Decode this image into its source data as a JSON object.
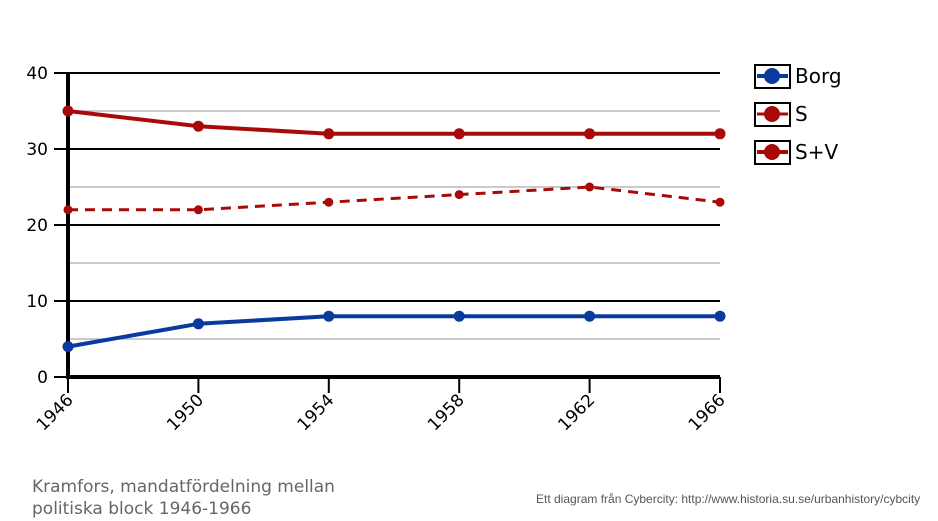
{
  "chart_data": {
    "type": "line",
    "title": "Kramfors, mandatfördelning mellan politiska block 1946-1966",
    "xlabel": "",
    "ylabel": "",
    "x": [
      1946,
      1950,
      1954,
      1958,
      1962,
      1966
    ],
    "x_tick_labels": [
      "1946",
      "1950",
      "1954",
      "1958",
      "1962",
      "1966"
    ],
    "ylim": [
      0,
      40
    ],
    "y_ticks": [
      0,
      10,
      20,
      30,
      40
    ],
    "y_tick_labels": [
      "0",
      "10",
      "20",
      "30",
      "40"
    ],
    "grid": true,
    "legend_position": "right",
    "series": [
      {
        "name": "Borg",
        "color": "#0a3a9e",
        "style": "solid",
        "values": [
          4,
          7,
          8,
          8,
          8,
          8
        ]
      },
      {
        "name": "S",
        "color": "#a80a0a",
        "style": "dashed",
        "values": [
          22,
          22,
          23,
          24,
          25,
          23
        ]
      },
      {
        "name": "S+V",
        "color": "#a80a0a",
        "style": "solid",
        "values": [
          35,
          33,
          32,
          32,
          32,
          32
        ]
      }
    ]
  },
  "credit": "Ett diagram från Cybercity: http://www.historia.su.se/urbanhistory/cybcity"
}
